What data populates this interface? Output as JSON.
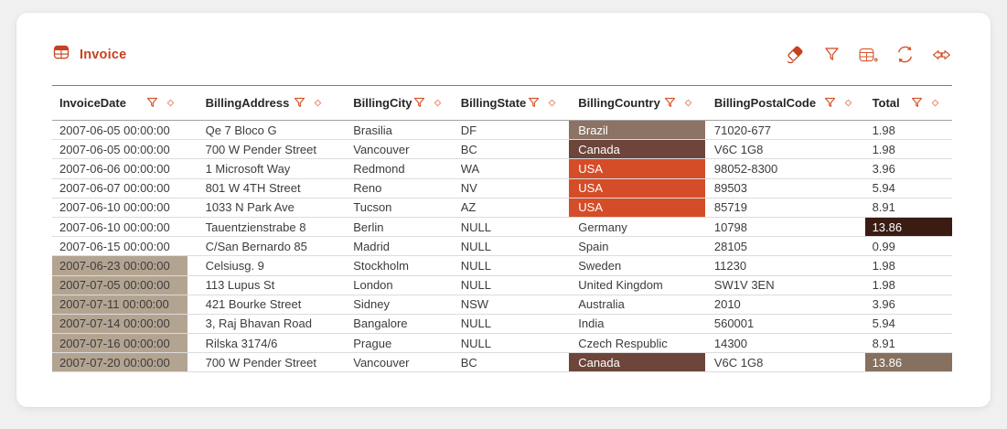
{
  "header": {
    "title": "Invoice"
  },
  "toolbar": {
    "buttons": [
      {
        "key": "eraser",
        "icon": "eraser-icon"
      },
      {
        "key": "filter",
        "icon": "filter-icon"
      },
      {
        "key": "table-settings",
        "icon": "table-settings-icon"
      },
      {
        "key": "refresh",
        "icon": "refresh-icon"
      },
      {
        "key": "swap-arrows",
        "icon": "swap-arrows-icon"
      }
    ]
  },
  "colors": {
    "accent_strong": "#c8401f",
    "accent_mid": "#d4572f",
    "accent_soft": "#ea9178",
    "header_text": "#262626",
    "body_text": "#3c3c3c",
    "row_line": "#dcdcdc"
  },
  "cell_highlights": {
    "tan": "#b3a491",
    "usa": "#d54d28",
    "canada": "#6d453a",
    "brazil": "#8c7366",
    "maroon": "#3a1c13",
    "taupe": "#86705f"
  },
  "table": {
    "columns": [
      {
        "key": "invoice-date",
        "label": "InvoiceDate"
      },
      {
        "key": "billing-address",
        "label": "BillingAddress"
      },
      {
        "key": "billing-city",
        "label": "BillingCity"
      },
      {
        "key": "billing-state",
        "label": "BillingState"
      },
      {
        "key": "billing-country",
        "label": "BillingCountry"
      },
      {
        "key": "billing-postal-code",
        "label": "BillingPostalCode"
      },
      {
        "key": "total",
        "label": "Total"
      }
    ],
    "rows": [
      [
        {
          "t": "2007-06-05 00:00:00"
        },
        {
          "t": "Qe 7 Bloco G"
        },
        {
          "t": "Brasilia"
        },
        {
          "t": "DF"
        },
        {
          "t": "Brazil",
          "h": "brazil"
        },
        {
          "t": "71020-677"
        },
        {
          "t": "1.98"
        }
      ],
      [
        {
          "t": "2007-06-05 00:00:00"
        },
        {
          "t": "700 W Pender Street"
        },
        {
          "t": "Vancouver"
        },
        {
          "t": "BC"
        },
        {
          "t": "Canada",
          "h": "canada"
        },
        {
          "t": "V6C 1G8"
        },
        {
          "t": "1.98"
        }
      ],
      [
        {
          "t": "2007-06-06 00:00:00"
        },
        {
          "t": "1 Microsoft Way"
        },
        {
          "t": "Redmond"
        },
        {
          "t": "WA"
        },
        {
          "t": "USA",
          "h": "usa"
        },
        {
          "t": "98052-8300"
        },
        {
          "t": "3.96"
        }
      ],
      [
        {
          "t": "2007-06-07 00:00:00"
        },
        {
          "t": "801 W 4TH Street"
        },
        {
          "t": "Reno"
        },
        {
          "t": "NV"
        },
        {
          "t": "USA",
          "h": "usa"
        },
        {
          "t": "89503"
        },
        {
          "t": "5.94"
        }
      ],
      [
        {
          "t": "2007-06-10 00:00:00"
        },
        {
          "t": "1033 N Park Ave"
        },
        {
          "t": "Tucson"
        },
        {
          "t": "AZ"
        },
        {
          "t": "USA",
          "h": "usa"
        },
        {
          "t": "85719"
        },
        {
          "t": "8.91"
        }
      ],
      [
        {
          "t": "2007-06-10 00:00:00"
        },
        {
          "t": "Tauentzienstrabe 8"
        },
        {
          "t": "Berlin"
        },
        {
          "t": "NULL"
        },
        {
          "t": "Germany"
        },
        {
          "t": "10798"
        },
        {
          "t": "13.86",
          "h": "maroon"
        }
      ],
      [
        {
          "t": "2007-06-15 00:00:00"
        },
        {
          "t": "C/San Bernardo 85"
        },
        {
          "t": "Madrid"
        },
        {
          "t": "NULL"
        },
        {
          "t": "Spain"
        },
        {
          "t": "28105"
        },
        {
          "t": "0.99"
        }
      ],
      [
        {
          "t": "2007-06-23 00:00:00",
          "h": "tan"
        },
        {
          "t": "Celsiusg. 9"
        },
        {
          "t": "Stockholm"
        },
        {
          "t": "NULL"
        },
        {
          "t": "Sweden"
        },
        {
          "t": "11230"
        },
        {
          "t": "1.98"
        }
      ],
      [
        {
          "t": "2007-07-05 00:00:00",
          "h": "tan"
        },
        {
          "t": "113 Lupus St"
        },
        {
          "t": "London"
        },
        {
          "t": "NULL"
        },
        {
          "t": "United Kingdom"
        },
        {
          "t": "SW1V 3EN"
        },
        {
          "t": "1.98"
        }
      ],
      [
        {
          "t": "2007-07-11 00:00:00",
          "h": "tan"
        },
        {
          "t": "421 Bourke Street"
        },
        {
          "t": "Sidney"
        },
        {
          "t": "NSW"
        },
        {
          "t": "Australia"
        },
        {
          "t": "2010"
        },
        {
          "t": "3.96"
        }
      ],
      [
        {
          "t": "2007-07-14 00:00:00",
          "h": "tan"
        },
        {
          "t": "3, Raj Bhavan Road"
        },
        {
          "t": "Bangalore"
        },
        {
          "t": "NULL"
        },
        {
          "t": "India"
        },
        {
          "t": "560001"
        },
        {
          "t": "5.94"
        }
      ],
      [
        {
          "t": "2007-07-16 00:00:00",
          "h": "tan"
        },
        {
          "t": "Rilska 3174/6"
        },
        {
          "t": "Prague"
        },
        {
          "t": "NULL"
        },
        {
          "t": "Czech Respublic"
        },
        {
          "t": "14300"
        },
        {
          "t": "8.91"
        }
      ],
      [
        {
          "t": "2007-07-20 00:00:00",
          "h": "tan"
        },
        {
          "t": "700 W Pender Street"
        },
        {
          "t": "Vancouver"
        },
        {
          "t": "BC"
        },
        {
          "t": "Canada",
          "h": "canada"
        },
        {
          "t": "V6C 1G8"
        },
        {
          "t": "13.86",
          "h": "taupe"
        }
      ]
    ]
  }
}
